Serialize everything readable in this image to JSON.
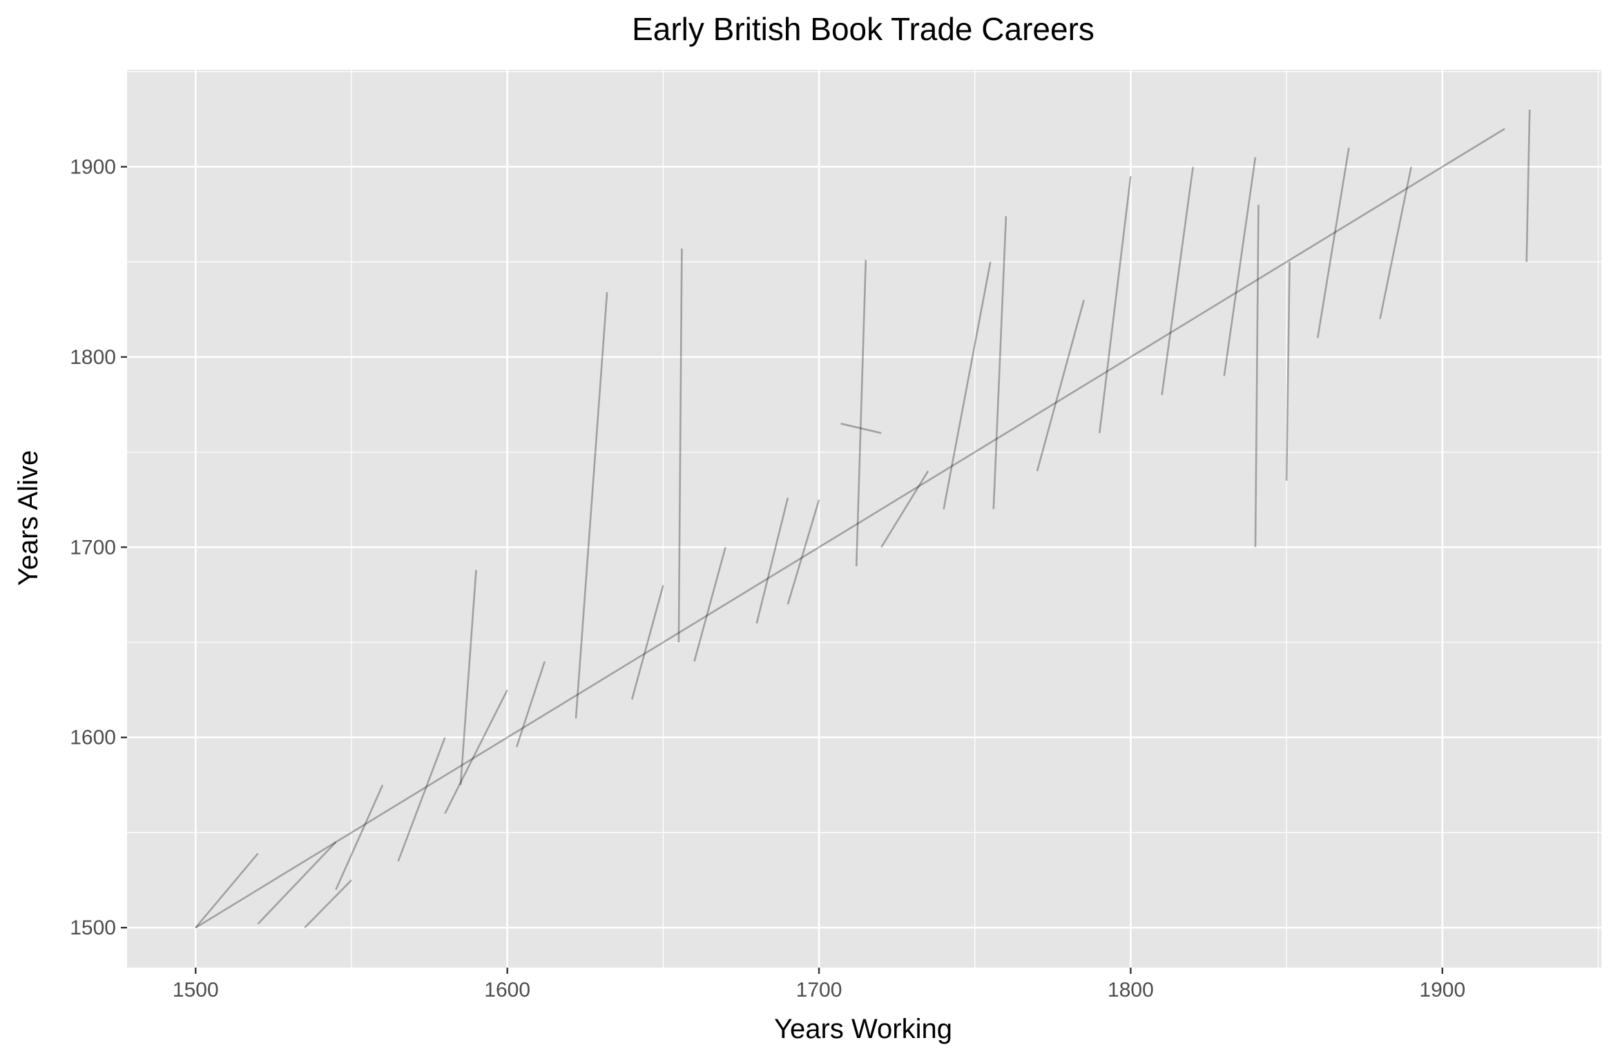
{
  "chart_data": {
    "type": "line",
    "title": "Early British Book Trade Careers",
    "xlabel": "Years Working",
    "ylabel": "Years Alive",
    "xlim": [
      1478,
      1951
    ],
    "ylim": [
      1479,
      1951
    ],
    "x_ticks": [
      1500,
      1600,
      1700,
      1800,
      1900
    ],
    "x_tick_labels": [
      "1500",
      "1600",
      "1700",
      "1800",
      "1900"
    ],
    "y_ticks": [
      1500,
      1600,
      1700,
      1800,
      1900
    ],
    "y_tick_labels": [
      "1500",
      "1600",
      "1700",
      "1800",
      "1900"
    ],
    "grid": true,
    "legend": "none",
    "panel_color": "#E5E5E5",
    "grid_color": "#FFFFFF",
    "line_color": "#000000",
    "line_opacity": 0.3,
    "series": [
      {
        "x": [
          1500,
          1520
        ],
        "y": [
          1500,
          1539
        ]
      },
      {
        "x": [
          1500,
          1920
        ],
        "y": [
          1500,
          1920
        ]
      },
      {
        "x": [
          1535,
          1550
        ],
        "y": [
          1500,
          1525
        ]
      },
      {
        "x": [
          1520,
          1545
        ],
        "y": [
          1502,
          1545
        ]
      },
      {
        "x": [
          1545,
          1560
        ],
        "y": [
          1520,
          1575
        ]
      },
      {
        "x": [
          1565,
          1580
        ],
        "y": [
          1535,
          1600
        ]
      },
      {
        "x": [
          1580,
          1600
        ],
        "y": [
          1560,
          1625
        ]
      },
      {
        "x": [
          1585,
          1590
        ],
        "y": [
          1575,
          1688
        ]
      },
      {
        "x": [
          1603,
          1612
        ],
        "y": [
          1595,
          1640
        ]
      },
      {
        "x": [
          1622,
          1632
        ],
        "y": [
          1610,
          1834
        ]
      },
      {
        "x": [
          1640,
          1650
        ],
        "y": [
          1620,
          1680
        ]
      },
      {
        "x": [
          1655,
          1656
        ],
        "y": [
          1650,
          1857
        ]
      },
      {
        "x": [
          1660,
          1670
        ],
        "y": [
          1640,
          1700
        ]
      },
      {
        "x": [
          1680,
          1690
        ],
        "y": [
          1660,
          1726
        ]
      },
      {
        "x": [
          1690,
          1700
        ],
        "y": [
          1670,
          1725
        ]
      },
      {
        "x": [
          1707,
          1720
        ],
        "y": [
          1765,
          1760
        ]
      },
      {
        "x": [
          1712,
          1715
        ],
        "y": [
          1690,
          1851
        ]
      },
      {
        "x": [
          1720,
          1735
        ],
        "y": [
          1700,
          1740
        ]
      },
      {
        "x": [
          1740,
          1755
        ],
        "y": [
          1720,
          1850
        ]
      },
      {
        "x": [
          1756,
          1760
        ],
        "y": [
          1720,
          1874
        ]
      },
      {
        "x": [
          1770,
          1785
        ],
        "y": [
          1740,
          1830
        ]
      },
      {
        "x": [
          1790,
          1800
        ],
        "y": [
          1760,
          1895
        ]
      },
      {
        "x": [
          1810,
          1820
        ],
        "y": [
          1780,
          1900
        ]
      },
      {
        "x": [
          1830,
          1840
        ],
        "y": [
          1790,
          1905
        ]
      },
      {
        "x": [
          1840,
          1841
        ],
        "y": [
          1700,
          1880
        ]
      },
      {
        "x": [
          1850,
          1851
        ],
        "y": [
          1735,
          1850
        ]
      },
      {
        "x": [
          1860,
          1870
        ],
        "y": [
          1810,
          1910
        ]
      },
      {
        "x": [
          1880,
          1890
        ],
        "y": [
          1820,
          1900
        ]
      },
      {
        "x": [
          1927,
          1928
        ],
        "y": [
          1850,
          1930
        ]
      }
    ]
  }
}
